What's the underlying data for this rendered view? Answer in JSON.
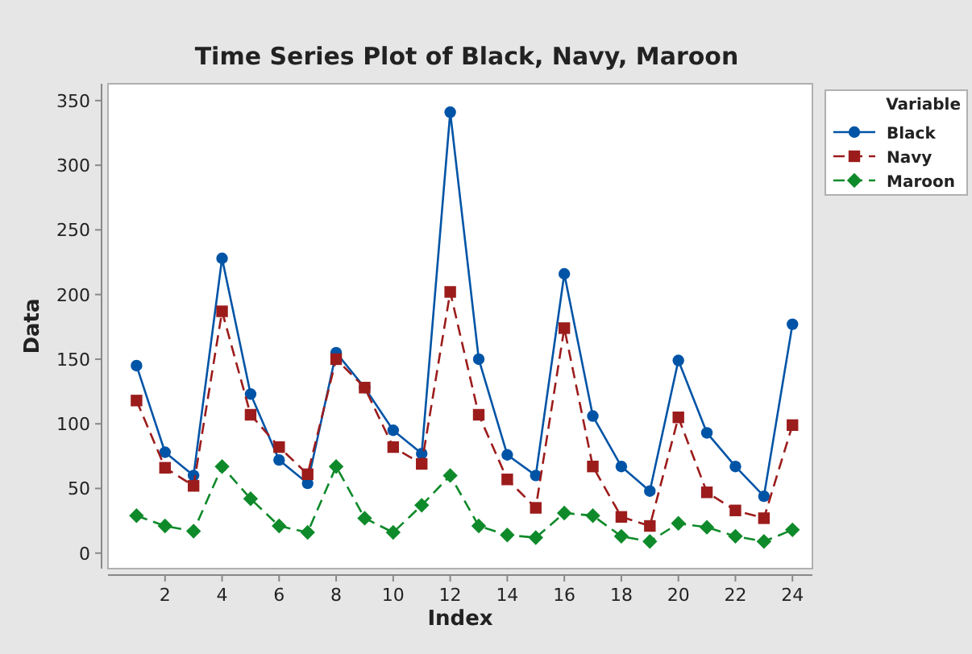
{
  "chart_data": {
    "type": "line",
    "title": "Time Series Plot of Black, Navy, Maroon",
    "xlabel": "Index",
    "ylabel": "Data",
    "legend_title": "Variable",
    "legend": "top right",
    "grid": false,
    "x": [
      1,
      2,
      3,
      4,
      5,
      6,
      7,
      8,
      9,
      10,
      11,
      12,
      13,
      14,
      15,
      16,
      17,
      18,
      19,
      20,
      21,
      22,
      23,
      24
    ],
    "xlim": [
      0,
      24.7
    ],
    "xticks": [
      2,
      4,
      6,
      8,
      10,
      12,
      14,
      16,
      18,
      20,
      22,
      24
    ],
    "ylim": [
      -12,
      363
    ],
    "yticks": [
      0,
      50,
      100,
      150,
      200,
      250,
      300,
      350
    ],
    "series": [
      {
        "name": "Black",
        "color": "#0054a6",
        "marker": "circle",
        "line_style": "solid",
        "values": [
          145,
          78,
          60,
          228,
          123,
          72,
          54,
          155,
          128,
          95,
          77,
          341,
          150,
          76,
          60,
          216,
          106,
          67,
          48,
          149,
          93,
          67,
          44,
          177
        ]
      },
      {
        "name": "Navy",
        "color": "#9c1c1c",
        "marker": "square",
        "line_style": "dashed",
        "values": [
          118,
          66,
          52,
          187,
          107,
          82,
          61,
          150,
          128,
          82,
          69,
          202,
          107,
          57,
          35,
          174,
          67,
          28,
          21,
          105,
          47,
          33,
          27,
          99
        ]
      },
      {
        "name": "Maroon",
        "color": "#0f8a2a",
        "marker": "diamond",
        "line_style": "dashed",
        "values": [
          29,
          21,
          17,
          67,
          42,
          21,
          16,
          67,
          27,
          16,
          37,
          60,
          21,
          14,
          12,
          31,
          29,
          13,
          9,
          23,
          20,
          13,
          9,
          18
        ]
      }
    ]
  }
}
